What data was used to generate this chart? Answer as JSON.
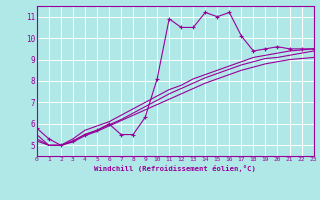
{
  "background_color": "#b0e8e8",
  "grid_color": "#ffffff",
  "line_color": "#990099",
  "xlabel": "Windchill (Refroidissement éolien,°C)",
  "xlim": [
    0,
    23
  ],
  "ylim": [
    4.5,
    11.5
  ],
  "xticks": [
    0,
    1,
    2,
    3,
    4,
    5,
    6,
    7,
    8,
    9,
    10,
    11,
    12,
    13,
    14,
    15,
    16,
    17,
    18,
    19,
    20,
    21,
    22,
    23
  ],
  "yticks": [
    5,
    6,
    7,
    8,
    9,
    10,
    11
  ],
  "series1_x": [
    0,
    1,
    2,
    3,
    4,
    5,
    6,
    7,
    8,
    9,
    10,
    11,
    12,
    13,
    14,
    15,
    16,
    17,
    18,
    19,
    20,
    21,
    22,
    23
  ],
  "series1_y": [
    5.8,
    5.3,
    5.0,
    5.2,
    5.5,
    5.7,
    6.0,
    5.5,
    5.5,
    6.3,
    8.1,
    10.9,
    10.5,
    10.5,
    11.2,
    11.0,
    11.2,
    10.1,
    9.4,
    9.5,
    9.6,
    9.5,
    9.5,
    9.5
  ],
  "series2_x": [
    0,
    1,
    2,
    3,
    4,
    5,
    6,
    7,
    8,
    9,
    10,
    11,
    12,
    13,
    14,
    15,
    16,
    17,
    18,
    19,
    20,
    21,
    22,
    23
  ],
  "series2_y": [
    5.5,
    5.0,
    5.0,
    5.3,
    5.7,
    5.9,
    6.1,
    6.4,
    6.7,
    7.0,
    7.3,
    7.6,
    7.8,
    8.1,
    8.3,
    8.5,
    8.7,
    8.9,
    9.1,
    9.2,
    9.3,
    9.4,
    9.45,
    9.5
  ],
  "series3_x": [
    0,
    1,
    2,
    3,
    4,
    5,
    6,
    7,
    8,
    9,
    10,
    11,
    12,
    13,
    14,
    15,
    16,
    17,
    18,
    19,
    20,
    21,
    22,
    23
  ],
  "series3_y": [
    5.3,
    5.0,
    5.0,
    5.2,
    5.5,
    5.7,
    5.95,
    6.2,
    6.5,
    6.8,
    7.1,
    7.4,
    7.65,
    7.9,
    8.15,
    8.35,
    8.55,
    8.75,
    8.9,
    9.05,
    9.1,
    9.2,
    9.3,
    9.4
  ],
  "series4_x": [
    0,
    1,
    2,
    3,
    4,
    5,
    6,
    7,
    8,
    9,
    10,
    11,
    12,
    13,
    14,
    15,
    16,
    17,
    18,
    19,
    20,
    21,
    22,
    23
  ],
  "series4_y": [
    5.2,
    5.0,
    5.0,
    5.15,
    5.45,
    5.65,
    5.9,
    6.15,
    6.4,
    6.65,
    6.9,
    7.15,
    7.4,
    7.65,
    7.9,
    8.1,
    8.3,
    8.5,
    8.65,
    8.8,
    8.9,
    9.0,
    9.05,
    9.1
  ]
}
